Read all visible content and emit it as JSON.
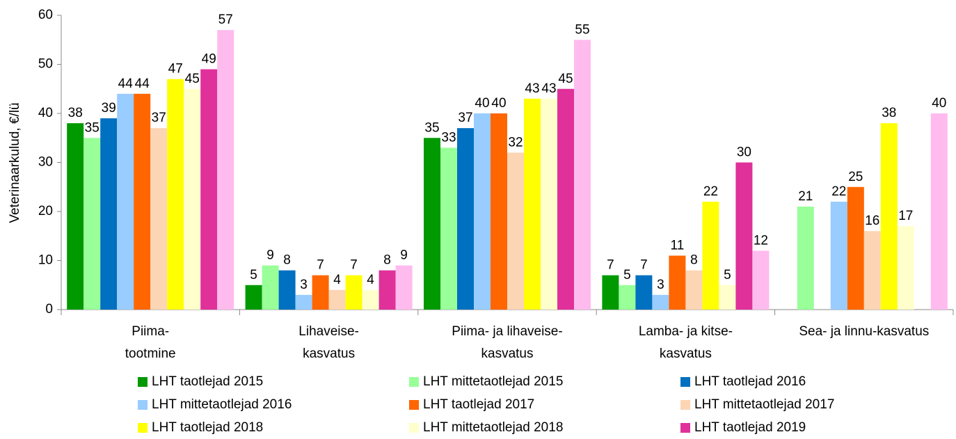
{
  "chart_data": {
    "type": "bar",
    "y_label": "Veterinaarkulud, €/lü",
    "categories": [
      [
        "Piima-",
        "tootmine"
      ],
      [
        "Lihaveise-",
        "kasvatus"
      ],
      [
        "Piima- ja lihaveise-",
        "kasvatus"
      ],
      [
        "Lamba- ja kitse-",
        "kasvatus"
      ],
      [
        "Sea- ja linnu-kasvatus"
      ]
    ],
    "series": [
      {
        "name": "LHT taotlejad 2015",
        "color": "#009900",
        "values": [
          38,
          5,
          35,
          7,
          null
        ]
      },
      {
        "name": "LHT mittetaotlejad 2015",
        "color": "#99ff99",
        "values": [
          35,
          9,
          33,
          5,
          21
        ]
      },
      {
        "name": "LHT taotlejad 2016",
        "color": "#0070c0",
        "values": [
          39,
          8,
          37,
          7,
          null
        ]
      },
      {
        "name": "LHT mittetaotlejad 2016",
        "color": "#99ccff",
        "values": [
          44,
          3,
          40,
          3,
          22
        ]
      },
      {
        "name": "LHT taotlejad 2017",
        "color": "#ff6600",
        "values": [
          44,
          7,
          40,
          11,
          25
        ]
      },
      {
        "name": "LHT mittetaotlejad 2017",
        "color": "#fcd5b4",
        "values": [
          37,
          4,
          32,
          8,
          16
        ]
      },
      {
        "name": "LHT taotlejad 2018",
        "color": "#ffff00",
        "values": [
          47,
          7,
          43,
          22,
          38
        ]
      },
      {
        "name": "LHT mittetaotlejad 2018",
        "color": "#ffffcc",
        "values": [
          45,
          4,
          43,
          5,
          17
        ]
      },
      {
        "name": "LHT taotlejad 2019",
        "color": "#e0309a",
        "values": [
          49,
          8,
          45,
          30,
          null
        ]
      },
      {
        "color": "#ffbbee",
        "values": [
          57,
          9,
          55,
          12,
          40
        ]
      }
    ],
    "ylim": [
      0,
      60
    ],
    "yticks": [
      0,
      10,
      20,
      30,
      40,
      50,
      60
    ]
  }
}
